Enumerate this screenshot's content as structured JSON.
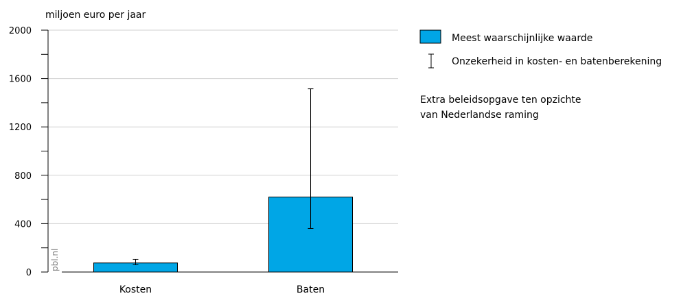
{
  "chart_data": {
    "type": "bar",
    "ylabel": "miljoen euro per jaar",
    "ylim": [
      0,
      2000
    ],
    "yticks": [
      0,
      400,
      800,
      1200,
      1600,
      2000
    ],
    "categories": [
      "Kosten",
      "Baten"
    ],
    "values": [
      75,
      620
    ],
    "error_low": [
      60,
      360
    ],
    "error_high": [
      105,
      1515
    ],
    "grid": true,
    "bar_color": "#00a6e6",
    "legend": {
      "placement": "top-right",
      "entries": [
        {
          "kind": "bar",
          "label": "Meest waarschijnlijke waarde"
        },
        {
          "kind": "errorbar",
          "label": "Onzekerheid in kosten- en batenberekening"
        }
      ]
    },
    "note": [
      "Extra beleidsopgave ten opzichte",
      "van Nederlandse raming"
    ]
  },
  "watermark": "pbl.nl"
}
